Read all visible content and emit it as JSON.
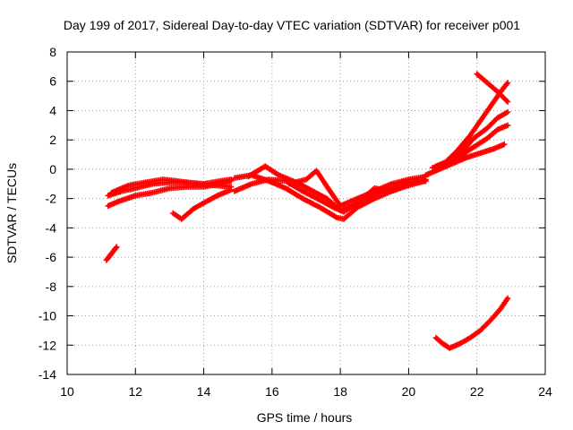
{
  "chart_data": {
    "type": "scatter",
    "title": "Day 199 of 2017, Sidereal Day-to-day VTEC variation (SDTVAR) for receiver p001",
    "xlabel": "GPS time / hours",
    "ylabel": "SDTVAR / TECUs",
    "xlim": [
      10,
      24
    ],
    "ylim": [
      -14,
      8
    ],
    "xticks": [
      10,
      12,
      14,
      16,
      18,
      20,
      22,
      24
    ],
    "yticks": [
      -14,
      -12,
      -10,
      -8,
      -6,
      -4,
      -2,
      0,
      2,
      4,
      6,
      8
    ],
    "grid": true,
    "legend": "none",
    "marker": "plus",
    "color": "#ff0000",
    "series": [
      {
        "points": [
          [
            11.15,
            -6.2
          ],
          [
            11.25,
            -5.9
          ],
          [
            11.35,
            -5.6
          ],
          [
            11.45,
            -5.3
          ]
        ]
      },
      {
        "points": [
          [
            11.2,
            -2.5
          ],
          [
            11.5,
            -2.2
          ],
          [
            12.0,
            -1.8
          ],
          [
            12.5,
            -1.6
          ],
          [
            13.0,
            -1.3
          ],
          [
            13.5,
            -1.2
          ],
          [
            14.0,
            -1.2
          ],
          [
            14.5,
            -1.0
          ],
          [
            14.8,
            -0.8
          ]
        ]
      },
      {
        "points": [
          [
            11.2,
            -1.8
          ],
          [
            11.6,
            -1.5
          ],
          [
            12.0,
            -1.3
          ],
          [
            12.5,
            -1.0
          ],
          [
            13.0,
            -0.9
          ],
          [
            13.5,
            -0.9
          ],
          [
            14.0,
            -1.0
          ],
          [
            14.5,
            -0.8
          ],
          [
            14.8,
            -0.7
          ]
        ]
      },
      {
        "points": [
          [
            11.3,
            -1.6
          ],
          [
            11.8,
            -1.1
          ],
          [
            12.3,
            -0.9
          ],
          [
            12.8,
            -0.7
          ],
          [
            13.2,
            -0.8
          ],
          [
            13.8,
            -1.0
          ],
          [
            14.3,
            -1.1
          ],
          [
            14.8,
            -1.2
          ]
        ]
      },
      {
        "points": [
          [
            13.1,
            -3.0
          ],
          [
            13.35,
            -3.4
          ],
          [
            13.7,
            -2.7
          ],
          [
            14.0,
            -2.3
          ],
          [
            14.4,
            -1.8
          ],
          [
            14.8,
            -1.4
          ]
        ]
      },
      {
        "points": [
          [
            14.9,
            -1.5
          ],
          [
            15.4,
            -1.0
          ],
          [
            15.9,
            -0.7
          ],
          [
            16.4,
            -0.8
          ],
          [
            16.9,
            -1.5
          ],
          [
            17.4,
            -2.1
          ],
          [
            17.8,
            -2.6
          ],
          [
            18.1,
            -2.9
          ],
          [
            18.5,
            -2.3
          ],
          [
            19.0,
            -1.7
          ],
          [
            19.5,
            -1.3
          ],
          [
            20.0,
            -0.9
          ],
          [
            20.5,
            -0.7
          ]
        ]
      },
      {
        "points": [
          [
            14.9,
            -0.6
          ],
          [
            15.4,
            -0.4
          ],
          [
            15.9,
            -0.8
          ],
          [
            16.4,
            -1.3
          ],
          [
            16.9,
            -2.0
          ],
          [
            17.4,
            -2.6
          ],
          [
            17.9,
            -3.3
          ],
          [
            18.1,
            -3.4
          ],
          [
            18.5,
            -2.6
          ],
          [
            19.0,
            -2.0
          ],
          [
            19.5,
            -1.5
          ],
          [
            20.0,
            -1.0
          ],
          [
            20.5,
            -0.8
          ]
        ]
      },
      {
        "points": [
          [
            15.3,
            -0.5
          ],
          [
            15.8,
            0.2
          ],
          [
            16.2,
            -0.4
          ],
          [
            16.8,
            -1.0
          ],
          [
            17.2,
            -1.5
          ],
          [
            17.6,
            -2.0
          ],
          [
            18.0,
            -2.8
          ],
          [
            18.4,
            -2.5
          ],
          [
            19.0,
            -1.3
          ],
          [
            19.5,
            -1.5
          ],
          [
            20.0,
            -1.1
          ],
          [
            20.5,
            -0.8
          ]
        ]
      },
      {
        "points": [
          [
            16.5,
            -1.0
          ],
          [
            17.0,
            -0.7
          ],
          [
            17.3,
            -0.1
          ],
          [
            17.7,
            -1.5
          ],
          [
            18.0,
            -2.5
          ],
          [
            18.5,
            -2.0
          ],
          [
            19.0,
            -1.5
          ],
          [
            19.5,
            -1.0
          ],
          [
            20.0,
            -0.7
          ],
          [
            20.5,
            -0.5
          ]
        ]
      },
      {
        "points": [
          [
            20.5,
            -0.4
          ],
          [
            20.9,
            0.0
          ],
          [
            21.3,
            0.4
          ],
          [
            21.7,
            0.8
          ],
          [
            22.1,
            1.1
          ],
          [
            22.5,
            1.4
          ],
          [
            22.8,
            1.7
          ]
        ]
      },
      {
        "points": [
          [
            20.7,
            0.1
          ],
          [
            21.1,
            0.4
          ],
          [
            21.5,
            0.9
          ],
          [
            21.9,
            1.5
          ],
          [
            22.3,
            2.1
          ],
          [
            22.6,
            2.7
          ],
          [
            22.9,
            3.0
          ]
        ]
      },
      {
        "points": [
          [
            20.8,
            0.2
          ],
          [
            21.2,
            0.6
          ],
          [
            21.6,
            1.3
          ],
          [
            21.9,
            2.1
          ],
          [
            22.3,
            2.8
          ],
          [
            22.6,
            3.5
          ],
          [
            22.9,
            3.9
          ]
        ]
      },
      {
        "points": [
          [
            21.0,
            0.3
          ],
          [
            21.4,
            1.2
          ],
          [
            21.8,
            2.3
          ],
          [
            22.1,
            3.3
          ],
          [
            22.4,
            4.3
          ],
          [
            22.7,
            5.3
          ],
          [
            22.9,
            5.9
          ]
        ]
      },
      {
        "points": [
          [
            22.0,
            6.5
          ],
          [
            22.3,
            5.9
          ],
          [
            22.6,
            5.3
          ],
          [
            22.9,
            4.6
          ]
        ]
      },
      {
        "points": [
          [
            20.8,
            -11.5
          ],
          [
            21.0,
            -11.9
          ],
          [
            21.2,
            -12.2
          ],
          [
            21.5,
            -11.9
          ],
          [
            21.8,
            -11.5
          ],
          [
            22.1,
            -11.0
          ],
          [
            22.4,
            -10.3
          ],
          [
            22.7,
            -9.5
          ],
          [
            22.9,
            -8.8
          ]
        ]
      }
    ]
  }
}
